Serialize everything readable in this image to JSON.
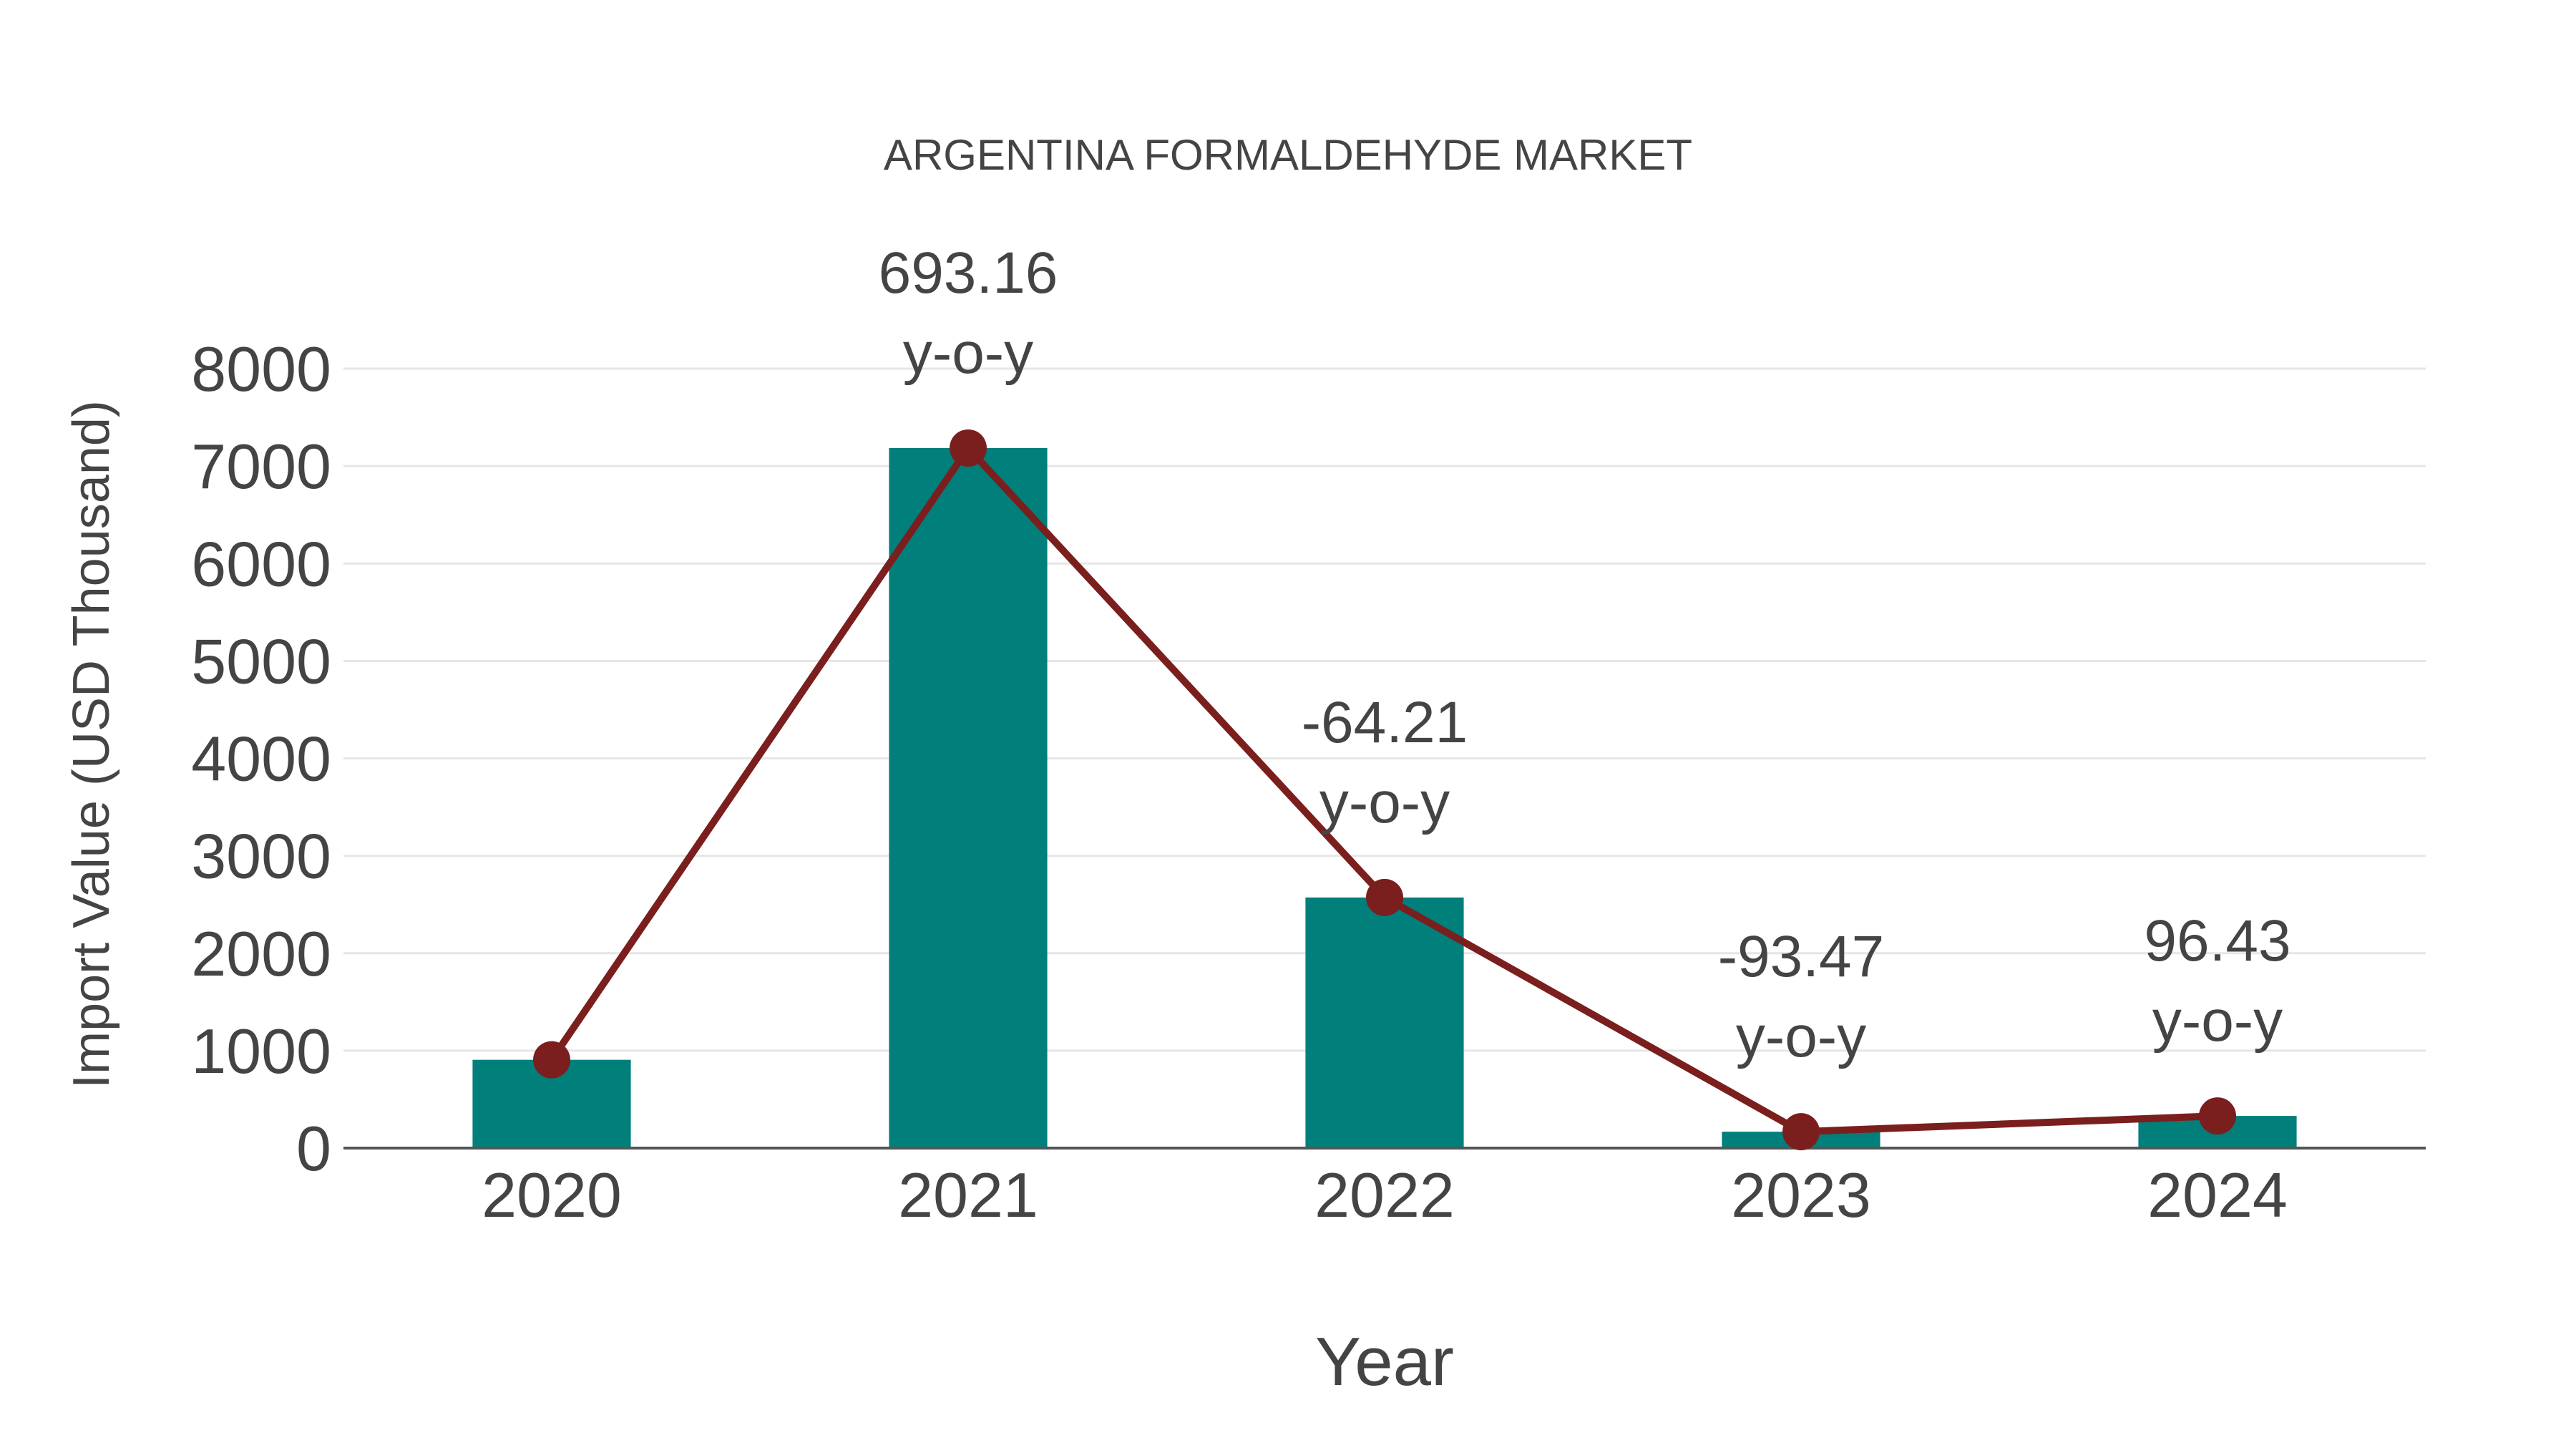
{
  "chart_data": {
    "type": "bar",
    "title": "ARGENTINA FORMALDEHYDE MARKET",
    "xlabel": "Year",
    "ylabel": "Import Value (USD Thousand)",
    "categories": [
      "2020",
      "2021",
      "2022",
      "2023",
      "2024"
    ],
    "series": [
      {
        "name": "Import Value",
        "type": "bar",
        "color": "#007F7B",
        "values": [
          906,
          7185,
          2572,
          168,
          330
        ]
      },
      {
        "name": "Trend",
        "type": "line",
        "color": "#7B1E1E",
        "values": [
          906,
          7185,
          2572,
          168,
          330
        ]
      }
    ],
    "annotations": [
      {
        "category": "2021",
        "value": "693.16",
        "suffix": "y-o-y"
      },
      {
        "category": "2022",
        "value": "-64.21",
        "suffix": "y-o-y"
      },
      {
        "category": "2023",
        "value": "-93.47",
        "suffix": "y-o-y"
      },
      {
        "category": "2024",
        "value": "96.43",
        "suffix": "y-o-y"
      }
    ],
    "yticks": [
      0,
      1000,
      2000,
      3000,
      4000,
      5000,
      6000,
      7000,
      8000
    ],
    "ylim": [
      0,
      8000
    ],
    "grid": true,
    "legend": "none"
  },
  "colors": {
    "bar": "#007F7B",
    "line": "#7B1E1E",
    "grid": "#E6E6E6",
    "axis": "#555555",
    "text": "#444444"
  }
}
